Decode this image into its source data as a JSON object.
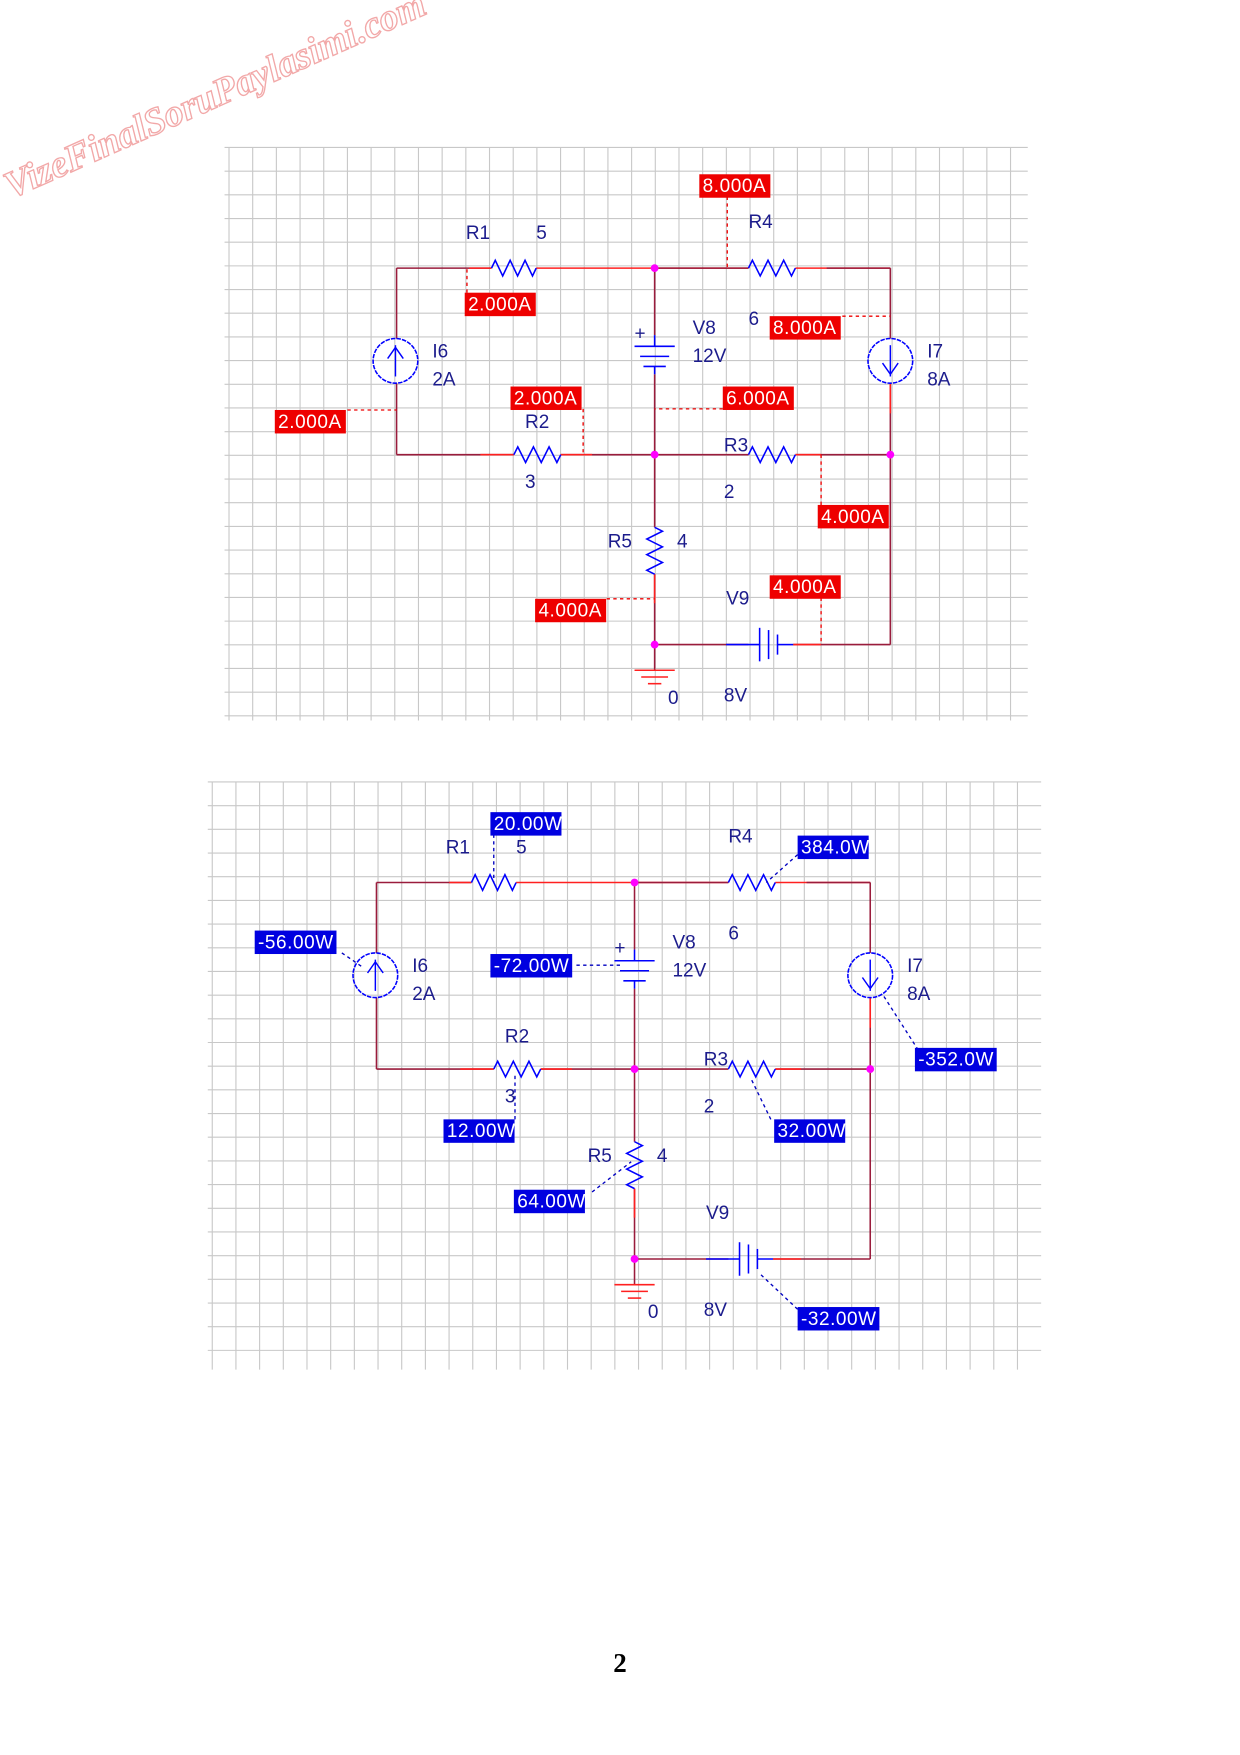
{
  "watermark": "VizeFinalSoruPaylasimi.com",
  "page_number": "2",
  "colors": {
    "wire": "#9a1c3c",
    "wire_highlight": "#ff2020",
    "component": "#0000ff",
    "node": "#ff00ff",
    "current_label_bg": "#ee0000",
    "power_label_bg": "#0000e0",
    "grid": "#c8c8c8"
  },
  "circuits": [
    {
      "kind": "current-readings",
      "labels": {
        "R1": "R1",
        "R1_value": "5",
        "R4": "R4",
        "R4_value": "6",
        "R2": "R2",
        "R2_value": "3",
        "R3": "R3",
        "R3_value": "2",
        "R5": "R5",
        "R5_value": "4",
        "V8": "V8",
        "V8_value": "12V",
        "V9": "V9",
        "V9_value": "8V",
        "I6": "I6",
        "I6_value": "2A",
        "I7": "I7",
        "I7_value": "8A",
        "ground": "0"
      },
      "readings": [
        "8.000A",
        "2.000A",
        "8.000A",
        "2.000A",
        "6.000A",
        "2.000A",
        "4.000A",
        "4.000A",
        "4.000A"
      ]
    },
    {
      "kind": "power-readings",
      "labels": {
        "R1": "R1",
        "R1_value": "5",
        "R4": "R4",
        "R4_value": "6",
        "R2": "R2",
        "R2_value": "3",
        "R3": "R3",
        "R3_value": "2",
        "R5": "R5",
        "R5_value": "4",
        "V8": "V8",
        "V8_value": "12V",
        "V9": "V9",
        "V9_value": "8V",
        "I6": "I6",
        "I6_value": "2A",
        "I7": "I7",
        "I7_value": "8A",
        "ground": "0"
      },
      "readings": [
        "20.00W",
        "384.0W",
        "-56.00W",
        "-72.00W",
        "-352.0W",
        "12.00W",
        "32.00W",
        "64.00W",
        "-32.00W"
      ]
    }
  ]
}
